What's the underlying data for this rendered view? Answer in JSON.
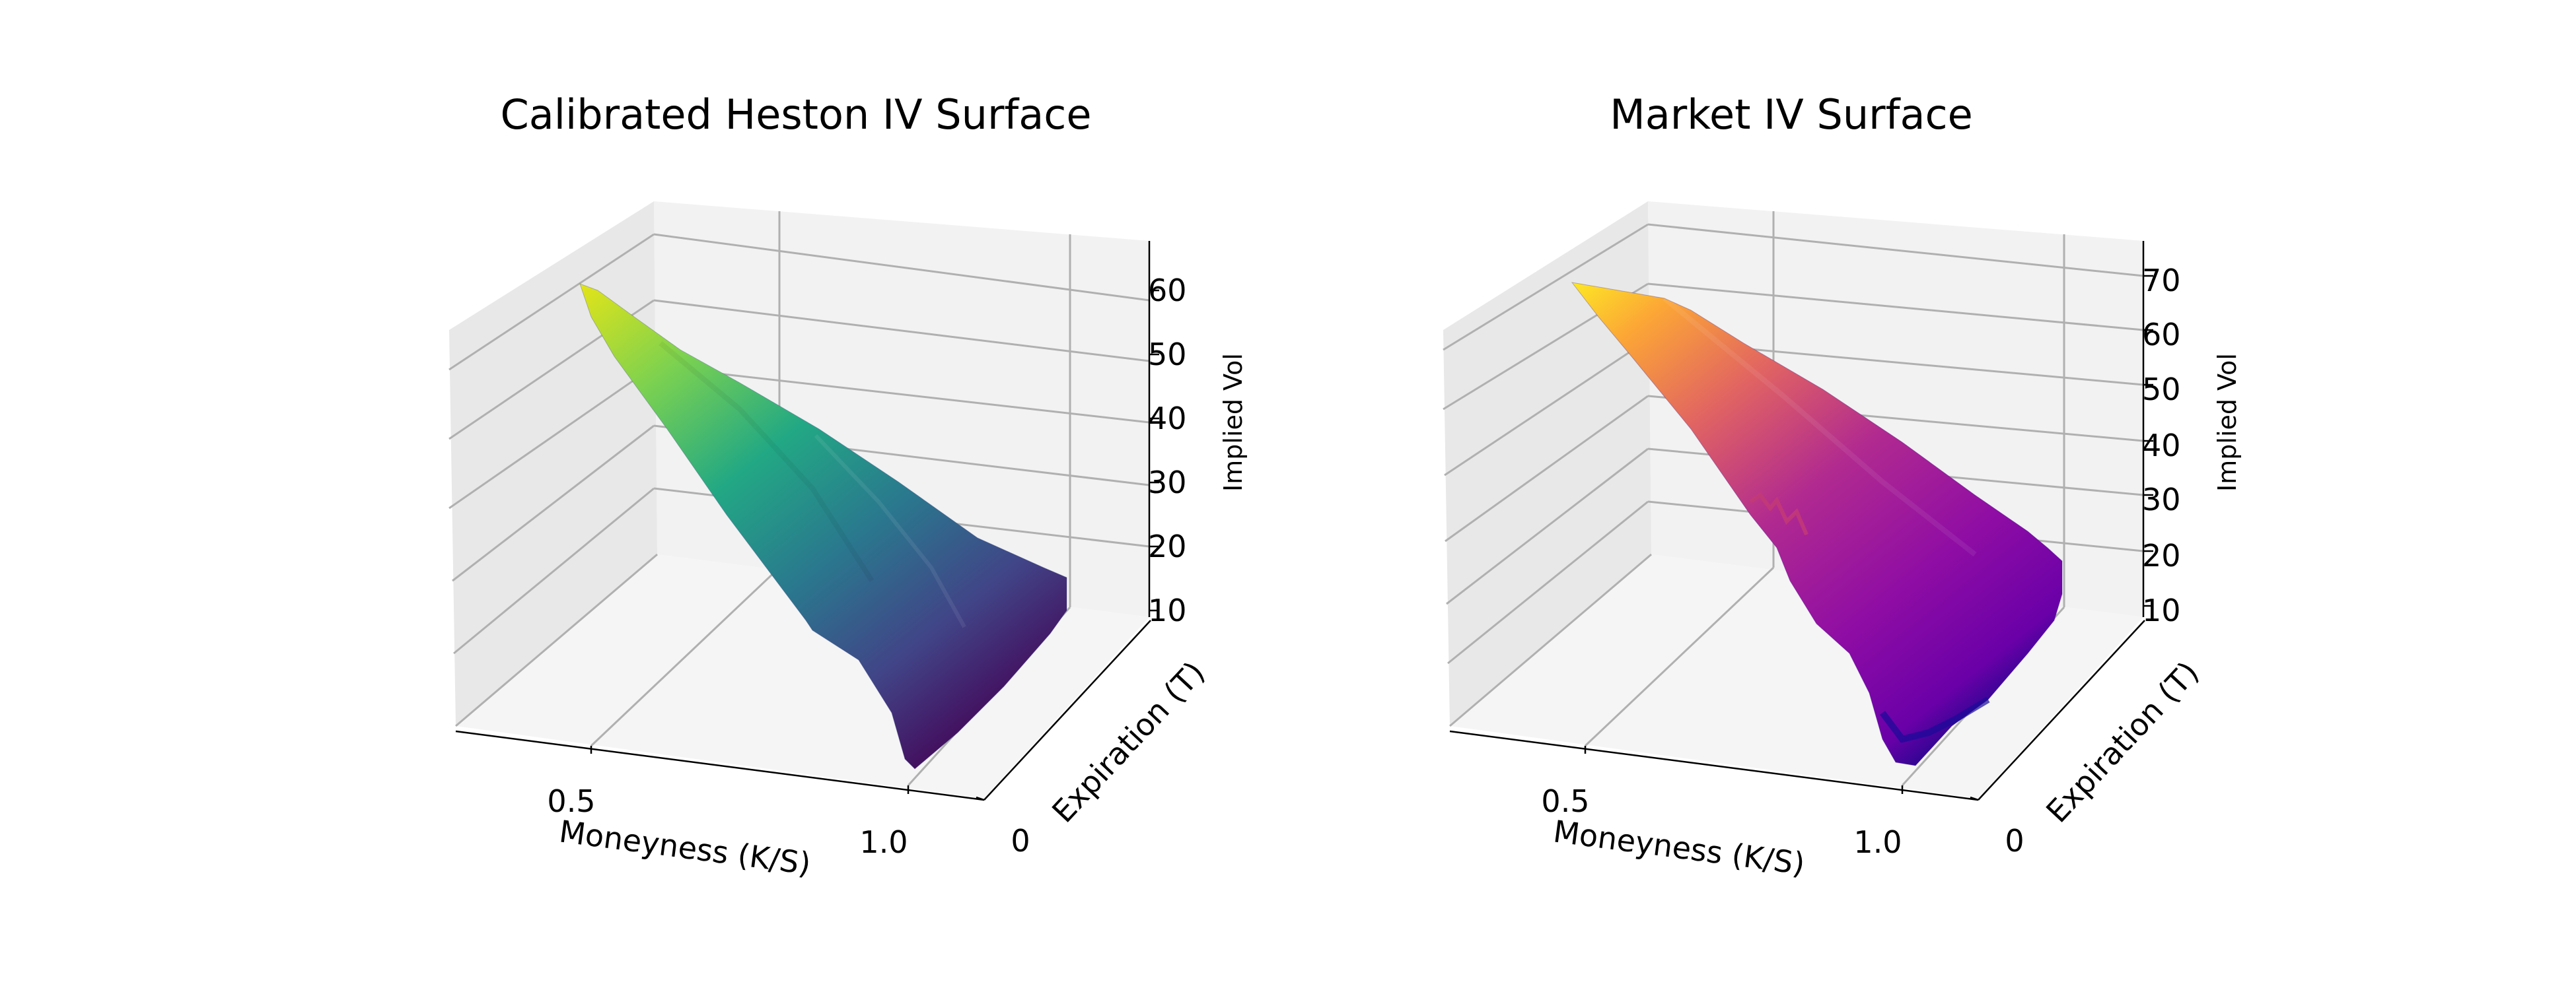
{
  "chart_data": [
    {
      "type": "surface",
      "title": "Calibrated Heston IV Surface",
      "xlabel": "Moneyness (K/S)",
      "ylabel": "Expiration (T)",
      "zlabel": "Implied Vol",
      "xticks": [
        "0.5",
        "1.0"
      ],
      "yticks": [
        "0"
      ],
      "zticks": [
        "10",
        "20",
        "30",
        "40",
        "50",
        "60"
      ],
      "zlim": [
        10,
        65
      ],
      "colormap": "viridis",
      "surface": {
        "moneyness": [
          0.3,
          0.45,
          0.6,
          0.75,
          0.9,
          1.05,
          1.2
        ],
        "iv_min": [
          62,
          48,
          36,
          27,
          19,
          13,
          11
        ],
        "iv_max": [
          63,
          52,
          41,
          32,
          25,
          19,
          15
        ]
      }
    },
    {
      "type": "surface",
      "title": "Market IV Surface",
      "xlabel": "Moneyness (K/S)",
      "ylabel": "Expiration (T)",
      "zlabel": "Implied Vol",
      "xticks": [
        "0.5",
        "1.0"
      ],
      "yticks": [
        "0"
      ],
      "zticks": [
        "10",
        "20",
        "30",
        "40",
        "50",
        "60",
        "70"
      ],
      "zlim": [
        8,
        74
      ],
      "colormap": "plasma",
      "surface": {
        "moneyness": [
          0.3,
          0.45,
          0.6,
          0.75,
          0.9,
          1.05,
          1.2
        ],
        "iv_min": [
          70,
          55,
          42,
          31,
          21,
          14,
          12
        ],
        "iv_max": [
          71,
          62,
          50,
          38,
          27,
          18,
          15
        ]
      }
    }
  ]
}
